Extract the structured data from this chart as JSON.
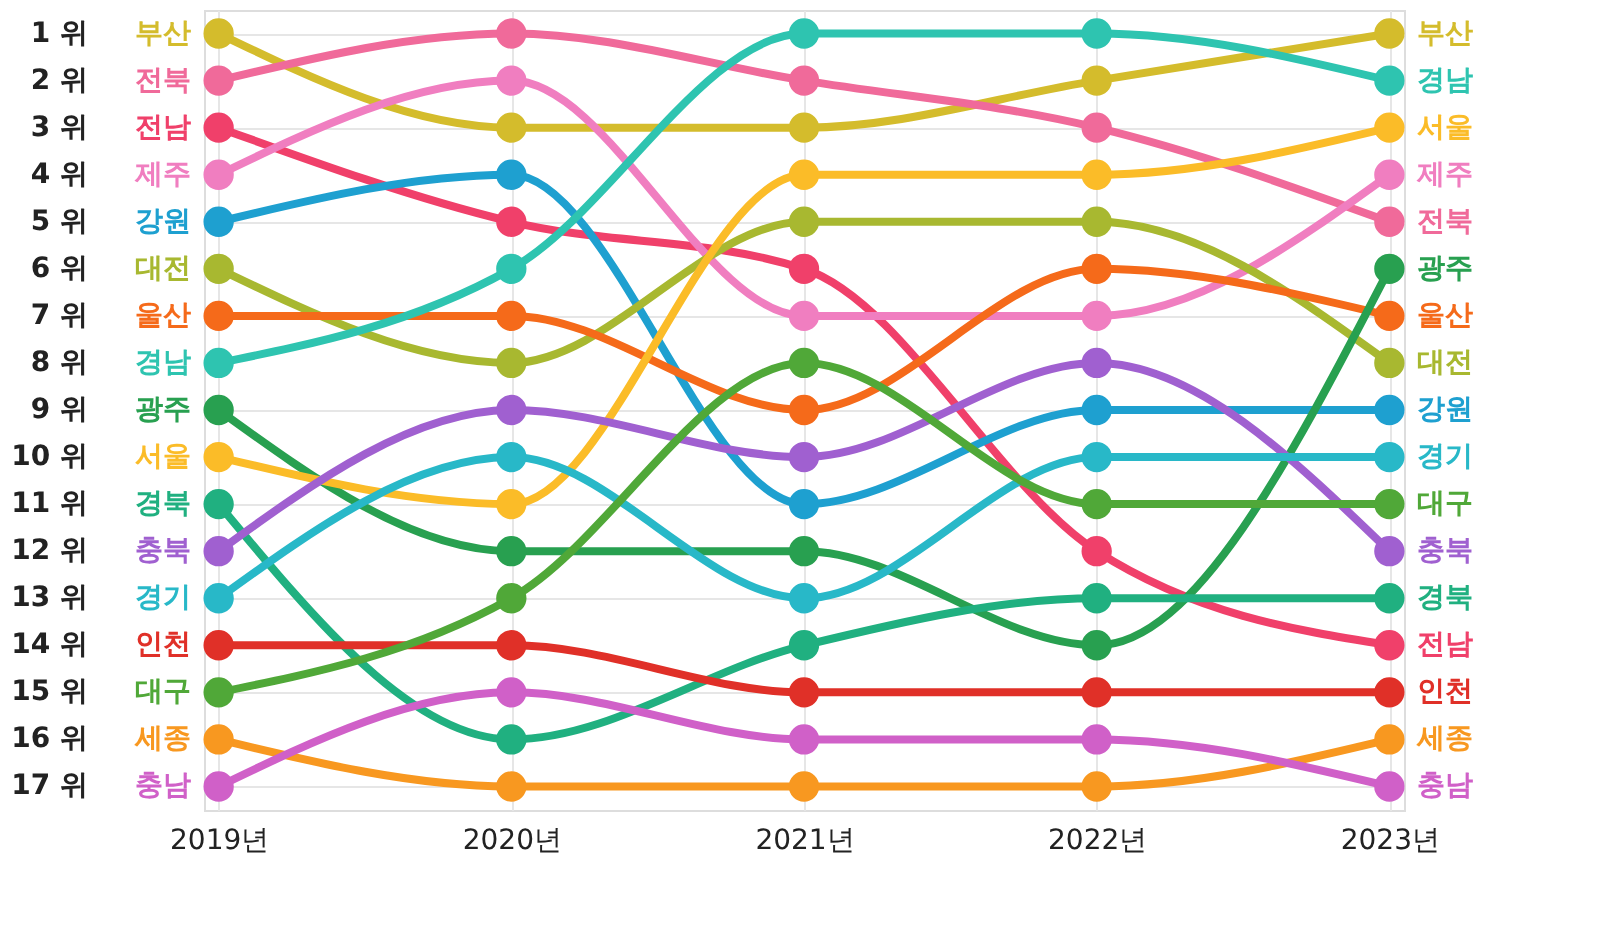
{
  "chart_data": {
    "type": "line",
    "categories": [
      "2019년",
      "2020년",
      "2021년",
      "2022년",
      "2023년"
    ],
    "series": [
      {
        "name": "부산",
        "color": "#d4bc2c",
        "values": [
          1,
          3,
          3,
          2,
          1
        ]
      },
      {
        "name": "전북",
        "color": "#f06a9a",
        "values": [
          2,
          1,
          2,
          3,
          5
        ]
      },
      {
        "name": "전남",
        "color": "#f0406a",
        "values": [
          3,
          5,
          6,
          12,
          14
        ]
      },
      {
        "name": "제주",
        "color": "#f07ec0",
        "values": [
          4,
          2,
          7,
          7,
          4
        ]
      },
      {
        "name": "강원",
        "color": "#1ea0d0",
        "values": [
          5,
          4,
          11,
          9,
          9
        ]
      },
      {
        "name": "대전",
        "color": "#a8b830",
        "values": [
          6,
          8,
          5,
          5,
          8
        ]
      },
      {
        "name": "울산",
        "color": "#f56a1a",
        "values": [
          7,
          7,
          9,
          6,
          7
        ]
      },
      {
        "name": "경남",
        "color": "#2ec4b0",
        "values": [
          8,
          6,
          1,
          1,
          2
        ]
      },
      {
        "name": "광주",
        "color": "#28a050",
        "values": [
          9,
          12,
          12,
          14,
          6
        ]
      },
      {
        "name": "서울",
        "color": "#fbbc28",
        "values": [
          10,
          11,
          4,
          4,
          3
        ]
      },
      {
        "name": "경북",
        "color": "#20b080",
        "values": [
          11,
          16,
          14,
          13,
          13
        ]
      },
      {
        "name": "충북",
        "color": "#a060d0",
        "values": [
          12,
          9,
          10,
          8,
          12
        ]
      },
      {
        "name": "경기",
        "color": "#28b8c8",
        "values": [
          13,
          10,
          13,
          10,
          10
        ]
      },
      {
        "name": "인천",
        "color": "#e03028",
        "values": [
          14,
          14,
          15,
          15,
          15
        ]
      },
      {
        "name": "대구",
        "color": "#50a838",
        "values": [
          15,
          13,
          8,
          11,
          11
        ]
      },
      {
        "name": "세종",
        "color": "#f89820",
        "values": [
          16,
          17,
          17,
          17,
          16
        ]
      },
      {
        "name": "충남",
        "color": "#d060c8",
        "values": [
          17,
          15,
          16,
          16,
          17
        ]
      }
    ],
    "ylim": [
      17.5,
      0.5
    ],
    "yticks": [
      {
        "value": 1,
        "label": "1 위"
      },
      {
        "value": 2,
        "label": "2 위"
      },
      {
        "value": 3,
        "label": "3 위"
      },
      {
        "value": 4,
        "label": "4 위"
      },
      {
        "value": 5,
        "label": "5 위"
      },
      {
        "value": 6,
        "label": "6 위"
      },
      {
        "value": 7,
        "label": "7 위"
      },
      {
        "value": 8,
        "label": "8 위"
      },
      {
        "value": 9,
        "label": "9 위"
      },
      {
        "value": 10,
        "label": "10 위"
      },
      {
        "value": 11,
        "label": "11 위"
      },
      {
        "value": 12,
        "label": "12 위"
      },
      {
        "value": 13,
        "label": "13 위"
      },
      {
        "value": 14,
        "label": "14 위"
      },
      {
        "value": 15,
        "label": "15 위"
      },
      {
        "value": 16,
        "label": "16 위"
      },
      {
        "value": 17,
        "label": "17 위"
      }
    ],
    "grid": true,
    "marker": "circle",
    "legend": false
  }
}
